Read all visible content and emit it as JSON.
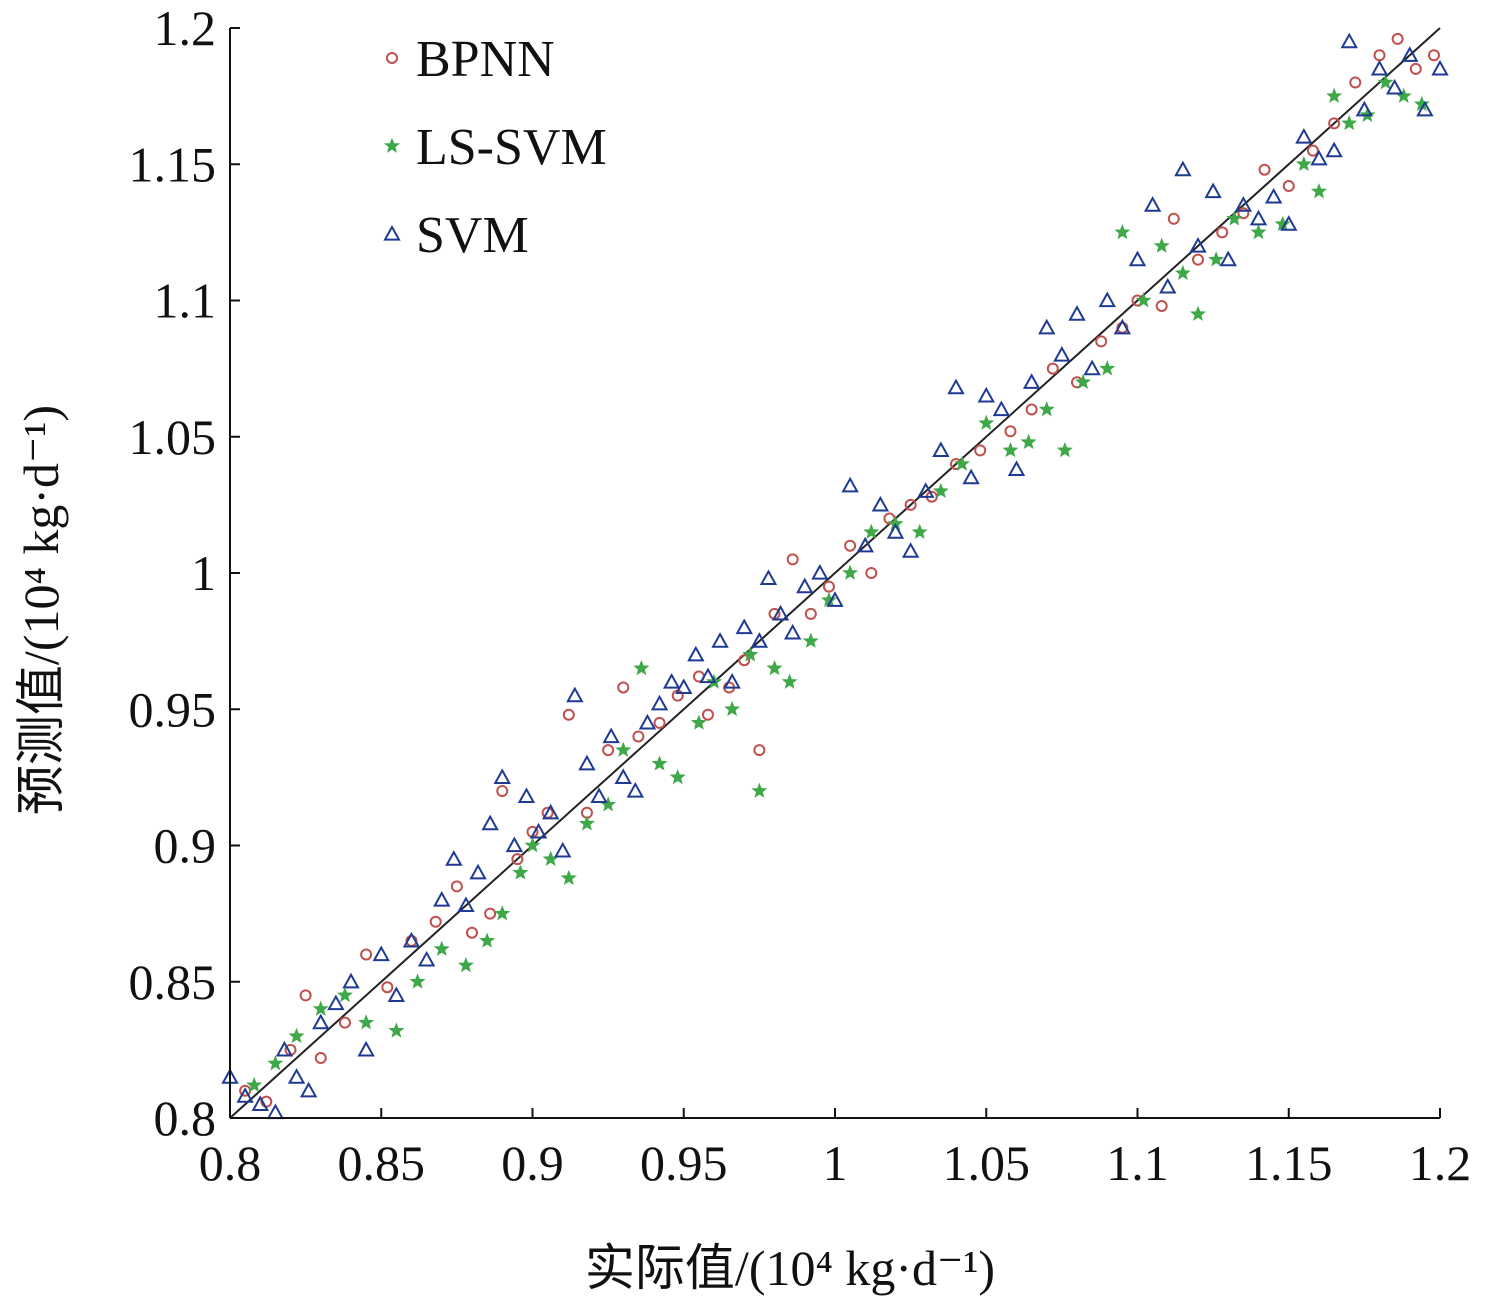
{
  "chart_data": {
    "type": "scatter",
    "title": "",
    "xlabel": "实际值/(10⁴ kg·d⁻¹)",
    "ylabel": "预测值/(10⁴ kg·d⁻¹)",
    "xlim": [
      0.8,
      1.2
    ],
    "ylim": [
      0.8,
      1.2
    ],
    "x_ticks": [
      "0.8",
      "0.85",
      "0.9",
      "0.95",
      "1",
      "1.05",
      "1.1",
      "1.15",
      "1.2"
    ],
    "y_ticks": [
      "0.8",
      "0.85",
      "0.9",
      "0.95",
      "1",
      "1.05",
      "1.1",
      "1.15",
      "1.2"
    ],
    "grid": false,
    "legend_position": "top-left",
    "reference_line": {
      "x": [
        0.8,
        1.2
      ],
      "y": [
        0.8,
        1.2
      ],
      "color": "#222222"
    },
    "series": [
      {
        "name": "BPNN",
        "marker": "circle",
        "color": "#c0504d",
        "points": [
          [
            0.805,
            0.81
          ],
          [
            0.812,
            0.806
          ],
          [
            0.82,
            0.825
          ],
          [
            0.825,
            0.845
          ],
          [
            0.83,
            0.822
          ],
          [
            0.838,
            0.835
          ],
          [
            0.845,
            0.86
          ],
          [
            0.852,
            0.848
          ],
          [
            0.86,
            0.865
          ],
          [
            0.868,
            0.872
          ],
          [
            0.875,
            0.885
          ],
          [
            0.88,
            0.868
          ],
          [
            0.886,
            0.875
          ],
          [
            0.89,
            0.92
          ],
          [
            0.895,
            0.895
          ],
          [
            0.9,
            0.905
          ],
          [
            0.905,
            0.912
          ],
          [
            0.912,
            0.948
          ],
          [
            0.918,
            0.912
          ],
          [
            0.925,
            0.935
          ],
          [
            0.93,
            0.958
          ],
          [
            0.935,
            0.94
          ],
          [
            0.942,
            0.945
          ],
          [
            0.948,
            0.955
          ],
          [
            0.955,
            0.962
          ],
          [
            0.958,
            0.948
          ],
          [
            0.965,
            0.958
          ],
          [
            0.97,
            0.968
          ],
          [
            0.975,
            0.935
          ],
          [
            0.98,
            0.985
          ],
          [
            0.986,
            1.005
          ],
          [
            0.992,
            0.985
          ],
          [
            0.998,
            0.995
          ],
          [
            1.005,
            1.01
          ],
          [
            1.012,
            1.0
          ],
          [
            1.018,
            1.02
          ],
          [
            1.025,
            1.025
          ],
          [
            1.032,
            1.028
          ],
          [
            1.04,
            1.04
          ],
          [
            1.048,
            1.045
          ],
          [
            1.058,
            1.052
          ],
          [
            1.065,
            1.06
          ],
          [
            1.072,
            1.075
          ],
          [
            1.08,
            1.07
          ],
          [
            1.088,
            1.085
          ],
          [
            1.095,
            1.09
          ],
          [
            1.1,
            1.1
          ],
          [
            1.108,
            1.098
          ],
          [
            1.112,
            1.13
          ],
          [
            1.12,
            1.115
          ],
          [
            1.128,
            1.125
          ],
          [
            1.135,
            1.132
          ],
          [
            1.142,
            1.148
          ],
          [
            1.15,
            1.142
          ],
          [
            1.158,
            1.155
          ],
          [
            1.165,
            1.165
          ],
          [
            1.172,
            1.18
          ],
          [
            1.18,
            1.19
          ],
          [
            1.186,
            1.196
          ],
          [
            1.192,
            1.185
          ],
          [
            1.198,
            1.19
          ]
        ]
      },
      {
        "name": "LS-SVM",
        "marker": "star",
        "color": "#3fa848",
        "points": [
          [
            0.808,
            0.812
          ],
          [
            0.815,
            0.82
          ],
          [
            0.822,
            0.83
          ],
          [
            0.83,
            0.84
          ],
          [
            0.838,
            0.845
          ],
          [
            0.845,
            0.835
          ],
          [
            0.855,
            0.832
          ],
          [
            0.862,
            0.85
          ],
          [
            0.87,
            0.862
          ],
          [
            0.878,
            0.856
          ],
          [
            0.885,
            0.865
          ],
          [
            0.89,
            0.875
          ],
          [
            0.896,
            0.89
          ],
          [
            0.9,
            0.9
          ],
          [
            0.906,
            0.895
          ],
          [
            0.912,
            0.888
          ],
          [
            0.918,
            0.908
          ],
          [
            0.925,
            0.915
          ],
          [
            0.93,
            0.935
          ],
          [
            0.936,
            0.965
          ],
          [
            0.942,
            0.93
          ],
          [
            0.948,
            0.925
          ],
          [
            0.955,
            0.945
          ],
          [
            0.96,
            0.96
          ],
          [
            0.966,
            0.95
          ],
          [
            0.972,
            0.97
          ],
          [
            0.975,
            0.92
          ],
          [
            0.98,
            0.965
          ],
          [
            0.985,
            0.96
          ],
          [
            0.992,
            0.975
          ],
          [
            0.998,
            0.99
          ],
          [
            1.005,
            1.0
          ],
          [
            1.012,
            1.015
          ],
          [
            1.02,
            1.018
          ],
          [
            1.028,
            1.015
          ],
          [
            1.035,
            1.03
          ],
          [
            1.042,
            1.04
          ],
          [
            1.05,
            1.055
          ],
          [
            1.058,
            1.045
          ],
          [
            1.064,
            1.048
          ],
          [
            1.07,
            1.06
          ],
          [
            1.076,
            1.045
          ],
          [
            1.082,
            1.07
          ],
          [
            1.09,
            1.075
          ],
          [
            1.095,
            1.125
          ],
          [
            1.102,
            1.1
          ],
          [
            1.108,
            1.12
          ],
          [
            1.115,
            1.11
          ],
          [
            1.12,
            1.095
          ],
          [
            1.126,
            1.115
          ],
          [
            1.132,
            1.13
          ],
          [
            1.14,
            1.125
          ],
          [
            1.148,
            1.128
          ],
          [
            1.155,
            1.15
          ],
          [
            1.16,
            1.14
          ],
          [
            1.165,
            1.175
          ],
          [
            1.17,
            1.165
          ],
          [
            1.176,
            1.168
          ],
          [
            1.182,
            1.18
          ],
          [
            1.188,
            1.175
          ],
          [
            1.194,
            1.172
          ]
        ]
      },
      {
        "name": "SVM",
        "marker": "triangle",
        "color": "#1f3a93",
        "points": [
          [
            0.8,
            0.815
          ],
          [
            0.805,
            0.808
          ],
          [
            0.81,
            0.805
          ],
          [
            0.815,
            0.802
          ],
          [
            0.818,
            0.825
          ],
          [
            0.822,
            0.815
          ],
          [
            0.826,
            0.81
          ],
          [
            0.83,
            0.835
          ],
          [
            0.835,
            0.842
          ],
          [
            0.84,
            0.85
          ],
          [
            0.845,
            0.825
          ],
          [
            0.85,
            0.86
          ],
          [
            0.855,
            0.845
          ],
          [
            0.86,
            0.865
          ],
          [
            0.865,
            0.858
          ],
          [
            0.87,
            0.88
          ],
          [
            0.874,
            0.895
          ],
          [
            0.878,
            0.878
          ],
          [
            0.882,
            0.89
          ],
          [
            0.886,
            0.908
          ],
          [
            0.89,
            0.925
          ],
          [
            0.894,
            0.9
          ],
          [
            0.898,
            0.918
          ],
          [
            0.902,
            0.905
          ],
          [
            0.906,
            0.912
          ],
          [
            0.91,
            0.898
          ],
          [
            0.914,
            0.955
          ],
          [
            0.918,
            0.93
          ],
          [
            0.922,
            0.918
          ],
          [
            0.926,
            0.94
          ],
          [
            0.93,
            0.925
          ],
          [
            0.934,
            0.92
          ],
          [
            0.938,
            0.945
          ],
          [
            0.942,
            0.952
          ],
          [
            0.946,
            0.96
          ],
          [
            0.95,
            0.958
          ],
          [
            0.954,
            0.97
          ],
          [
            0.958,
            0.962
          ],
          [
            0.962,
            0.975
          ],
          [
            0.966,
            0.96
          ],
          [
            0.97,
            0.98
          ],
          [
            0.975,
            0.975
          ],
          [
            0.978,
            0.998
          ],
          [
            0.982,
            0.985
          ],
          [
            0.986,
            0.978
          ],
          [
            0.99,
            0.995
          ],
          [
            0.995,
            1.0
          ],
          [
            1.0,
            0.99
          ],
          [
            1.005,
            1.032
          ],
          [
            1.01,
            1.01
          ],
          [
            1.015,
            1.025
          ],
          [
            1.02,
            1.015
          ],
          [
            1.025,
            1.008
          ],
          [
            1.03,
            1.03
          ],
          [
            1.035,
            1.045
          ],
          [
            1.04,
            1.068
          ],
          [
            1.045,
            1.035
          ],
          [
            1.05,
            1.065
          ],
          [
            1.055,
            1.06
          ],
          [
            1.06,
            1.038
          ],
          [
            1.065,
            1.07
          ],
          [
            1.07,
            1.09
          ],
          [
            1.075,
            1.08
          ],
          [
            1.08,
            1.095
          ],
          [
            1.085,
            1.075
          ],
          [
            1.09,
            1.1
          ],
          [
            1.095,
            1.09
          ],
          [
            1.1,
            1.115
          ],
          [
            1.105,
            1.135
          ],
          [
            1.11,
            1.105
          ],
          [
            1.115,
            1.148
          ],
          [
            1.12,
            1.12
          ],
          [
            1.125,
            1.14
          ],
          [
            1.13,
            1.115
          ],
          [
            1.135,
            1.135
          ],
          [
            1.14,
            1.13
          ],
          [
            1.145,
            1.138
          ],
          [
            1.15,
            1.128
          ],
          [
            1.155,
            1.16
          ],
          [
            1.16,
            1.152
          ],
          [
            1.165,
            1.155
          ],
          [
            1.17,
            1.195
          ],
          [
            1.175,
            1.17
          ],
          [
            1.18,
            1.185
          ],
          [
            1.185,
            1.178
          ],
          [
            1.19,
            1.19
          ],
          [
            1.195,
            1.17
          ],
          [
            1.2,
            1.185
          ]
        ]
      }
    ]
  }
}
